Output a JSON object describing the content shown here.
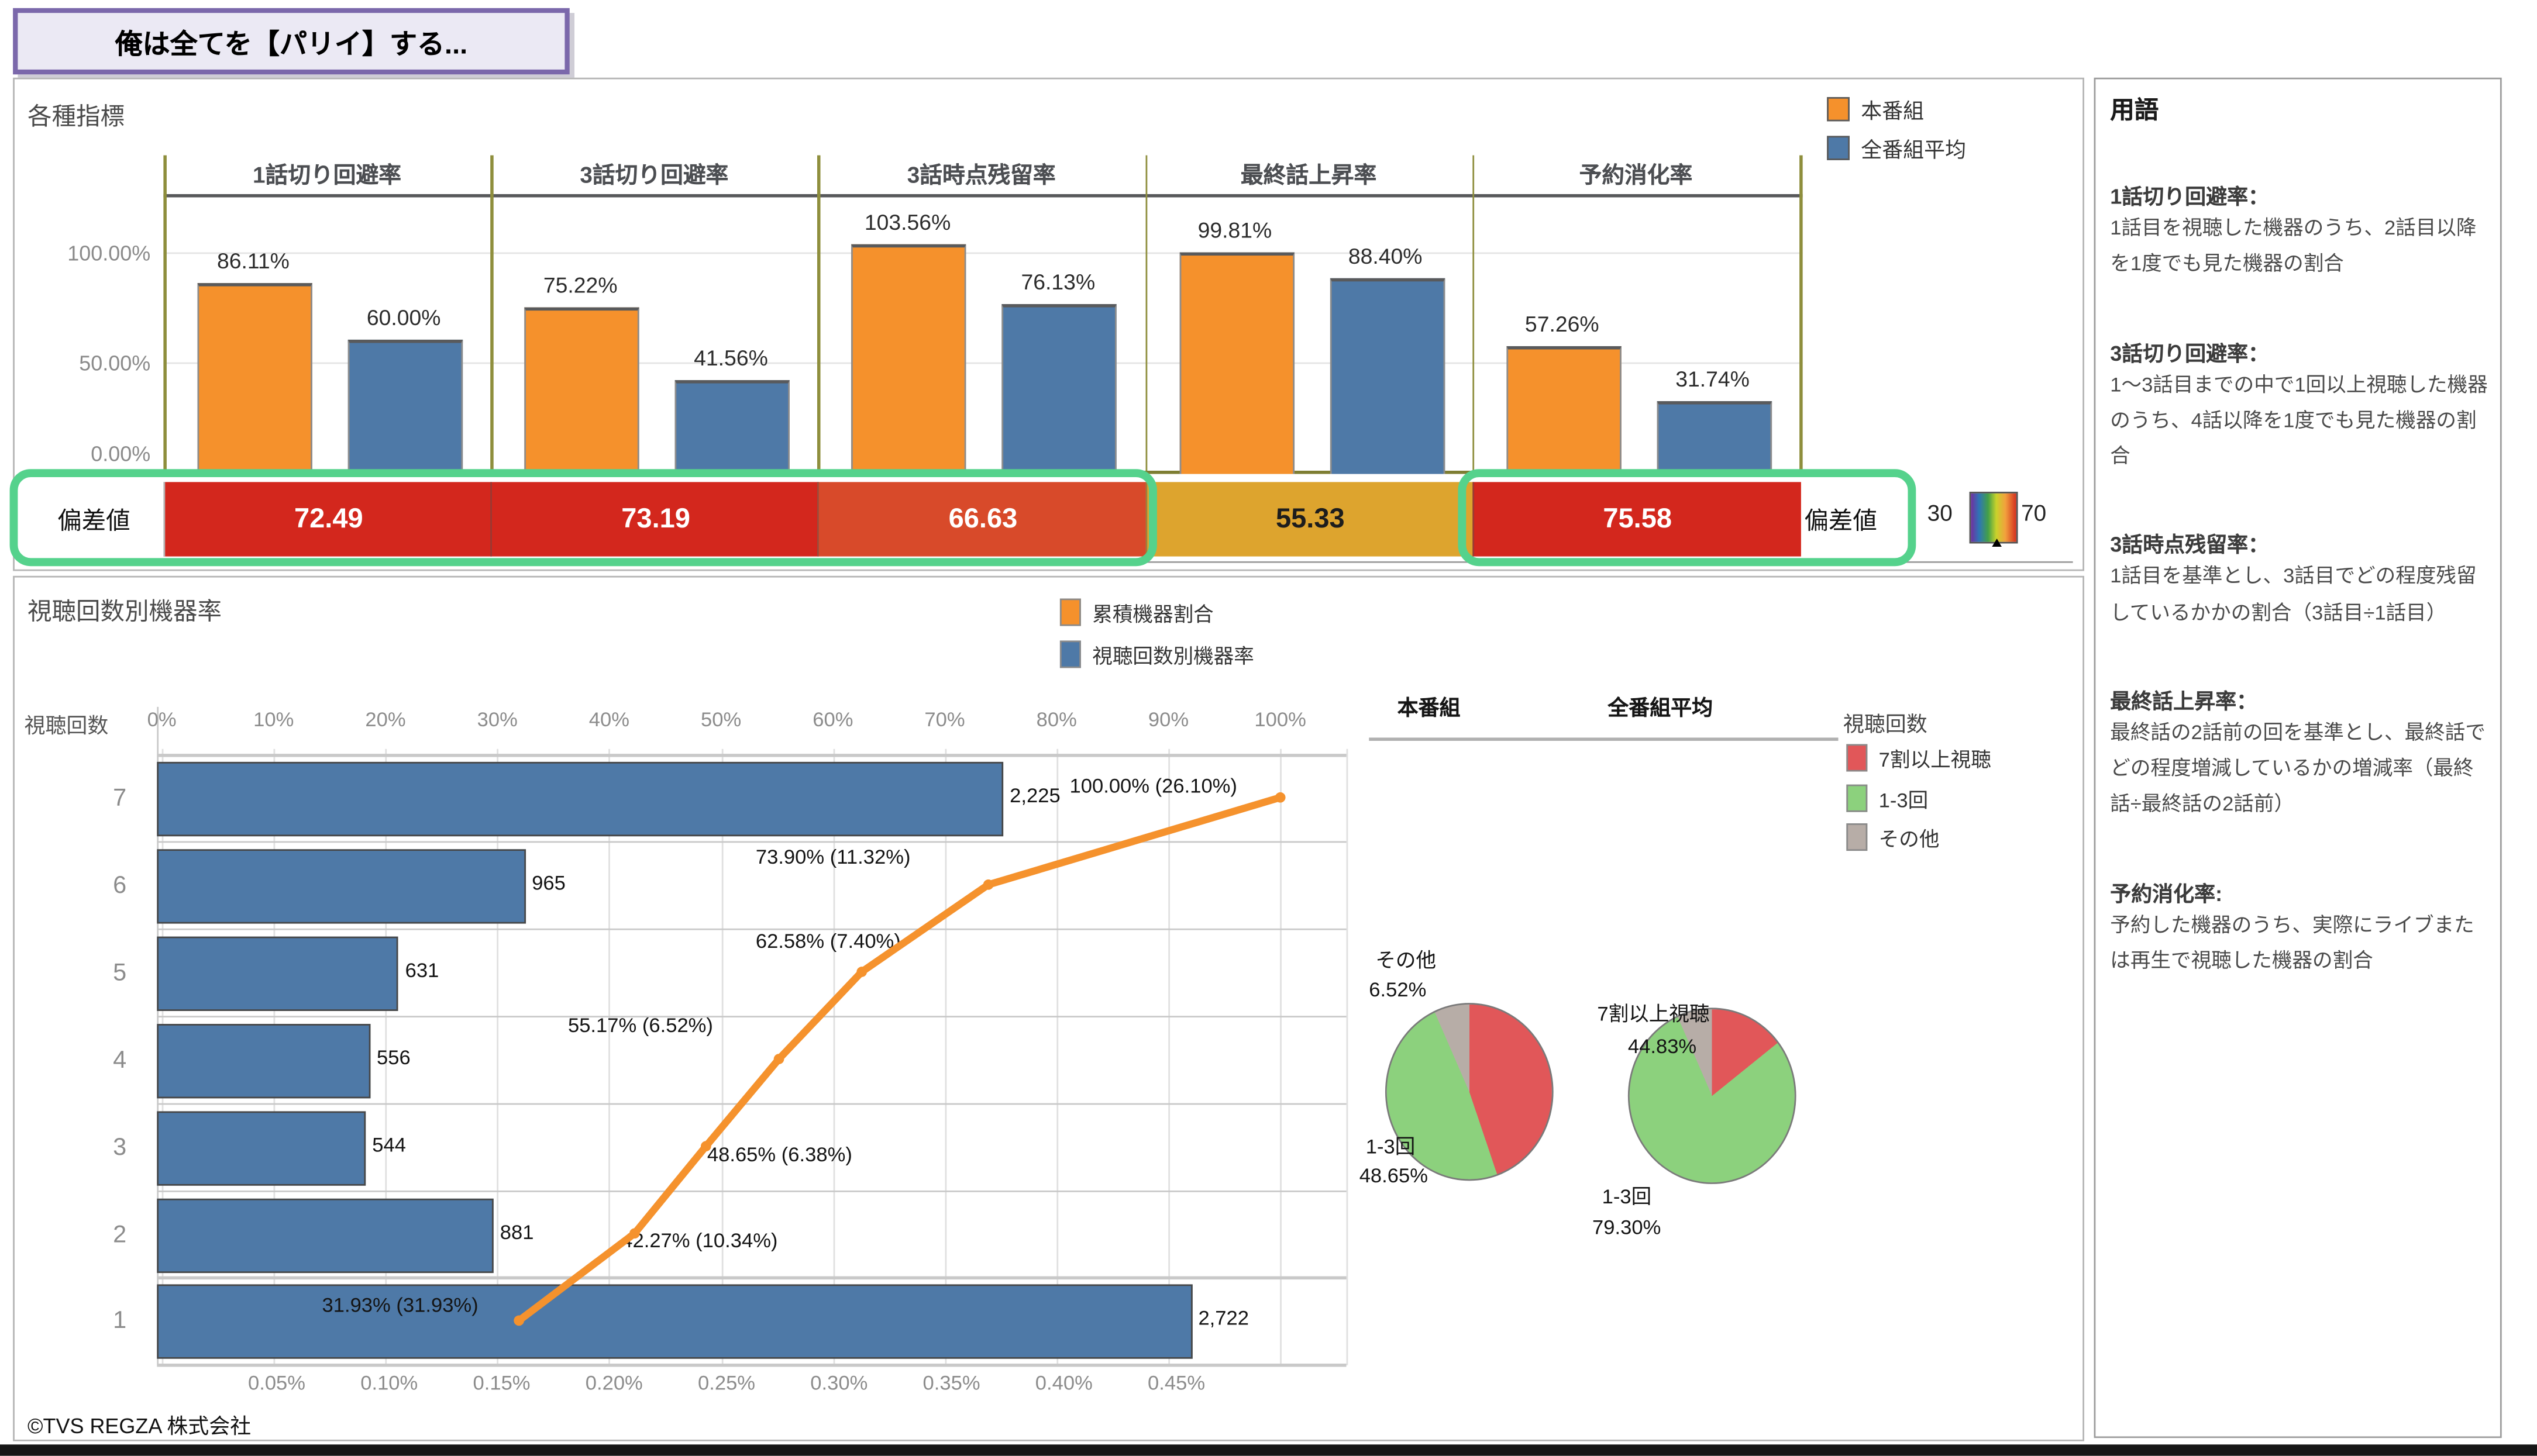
{
  "banner": {
    "title": "俺は全てを【パリイ】する..."
  },
  "metrics_panel": {
    "title": "各種指標",
    "legend": [
      {
        "label": "本番組",
        "color": "#f5912c"
      },
      {
        "label": "全番組平均",
        "color": "#4e79a7"
      }
    ],
    "y_ticks": [
      "100.00%",
      "50.00%",
      "0.00%"
    ],
    "deviation_label": "偏差値",
    "deviation_scale": {
      "min": "30",
      "max": "70"
    },
    "highlight_color": "#55d28c",
    "columns": [
      {
        "header": "1話切り回避率",
        "main": "86.11%",
        "main_value": 86.11,
        "avg": "60.00%",
        "avg_value": 60.0,
        "deviation": "72.49",
        "deviation_color": "#d3271d",
        "deviation_text_dark": false
      },
      {
        "header": "3話切り回避率",
        "main": "75.22%",
        "main_value": 75.22,
        "avg": "41.56%",
        "avg_value": 41.56,
        "deviation": "73.19",
        "deviation_color": "#d3271d",
        "deviation_text_dark": false
      },
      {
        "header": "3話時点残留率",
        "main": "103.56%",
        "main_value": 103.56,
        "avg": "76.13%",
        "avg_value": 76.13,
        "deviation": "66.63",
        "deviation_color": "#d84a2a",
        "deviation_text_dark": false
      },
      {
        "header": "最終話上昇率",
        "main": "99.81%",
        "main_value": 99.81,
        "avg": "88.40%",
        "avg_value": 88.4,
        "deviation": "55.33",
        "deviation_color": "#dda42e",
        "deviation_text_dark": true
      },
      {
        "header": "予約消化率",
        "main": "57.26%",
        "main_value": 57.26,
        "avg": "31.74%",
        "avg_value": 31.74,
        "deviation": "75.58",
        "deviation_color": "#d3271d",
        "deviation_text_dark": false
      }
    ]
  },
  "viewing_panel": {
    "title": "視聴回数別機器率",
    "legend": [
      {
        "label": "累積機器割合",
        "color": "#f5912c"
      },
      {
        "label": "視聴回数別機器率",
        "color": "#4e79a7"
      }
    ],
    "y_axis_title": "視聴回数",
    "top_axis_ticks": [
      "0%",
      "10%",
      "20%",
      "30%",
      "40%",
      "50%",
      "60%",
      "70%",
      "80%",
      "90%",
      "100%"
    ],
    "bottom_axis_ticks": [
      "0.05%",
      "0.10%",
      "0.15%",
      "0.20%",
      "0.25%",
      "0.30%",
      "0.35%",
      "0.40%",
      "0.45%"
    ],
    "rows": [
      {
        "label": "7",
        "count": 2225,
        "count_label": "2,225",
        "cum": 100.0,
        "cum_label": "100.00% (26.10%)"
      },
      {
        "label": "6",
        "count": 965,
        "count_label": "965",
        "cum": 73.9,
        "cum_label": "73.90% (11.32%)"
      },
      {
        "label": "5",
        "count": 631,
        "count_label": "631",
        "cum": 62.58,
        "cum_label": "62.58% (7.40%)"
      },
      {
        "label": "4",
        "count": 556,
        "count_label": "556",
        "cum": 55.17,
        "cum_label": "55.17% (6.52%)"
      },
      {
        "label": "3",
        "count": 544,
        "count_label": "544",
        "cum": 48.65,
        "cum_label": "48.65% (6.38%)"
      },
      {
        "label": "2",
        "count": 881,
        "count_label": "881",
        "cum": 42.27,
        "cum_label": "42.27% (10.34%)"
      },
      {
        "label": "1",
        "count": 2722,
        "count_label": "2,722",
        "cum": 31.93,
        "cum_label": "31.93% (31.93%)"
      }
    ]
  },
  "pie_section": {
    "headers": [
      "本番組",
      "全番組平均"
    ],
    "legend_title": "視聴回数",
    "legend": [
      {
        "label": "7割以上視聴",
        "color": "#e15759"
      },
      {
        "label": "1-3回",
        "color": "#8cd17d"
      },
      {
        "label": "その他",
        "color": "#b7ada7"
      }
    ],
    "main_pie": {
      "slices": [
        {
          "name": "7割以上視聴",
          "value": 44.83
        },
        {
          "name": "1-3回",
          "value": 48.65
        },
        {
          "name": "その他",
          "value": 6.52
        }
      ],
      "labels": {
        "other": "その他",
        "other_pct": "6.52%",
        "red": "7割以上視聴",
        "red_pct": "44.83%",
        "green": "1-3回",
        "green_pct": "48.65%"
      }
    },
    "avg_pie": {
      "slices": [
        {
          "name": "7割以上視聴",
          "value": 14.18
        },
        {
          "name": "1-3回",
          "value": 79.3
        },
        {
          "name": "その他",
          "value": 6.52
        }
      ],
      "labels": {
        "green": "1-3回",
        "green_pct": "79.30%"
      }
    }
  },
  "glossary": {
    "title": "用語",
    "terms": [
      {
        "term": "1話切り回避率：",
        "definition": "1話目を視聴した機器のうち、2話目以降を1度でも見た機器の割合"
      },
      {
        "term": "3話切り回避率：",
        "definition": "1～3話目までの中で1回以上視聴した機器のうち、4話以降を1度でも見た機器の割合"
      },
      {
        "term": "3話時点残留率：",
        "definition": "1話目を基準とし、3話目でどの程度残留しているかかの割合（3話目÷1話目）"
      },
      {
        "term": "最終話上昇率：",
        "definition": "最終話の2話前の回を基準とし、最終話でどの程度増減しているかの増減率（最終話÷最終話の2話前）"
      },
      {
        "term": "予約消化率:",
        "definition": "予約した機器のうち、実際にライブまたは再生で視聴した機器の割合"
      }
    ]
  },
  "footer": {
    "copyright": "©TVS REGZA 株式会社"
  },
  "chart_data": [
    {
      "type": "bar",
      "title": "各種指標",
      "categories": [
        "1話切り回避率",
        "3話切り回避率",
        "3話時点残留率",
        "最終話上昇率",
        "予約消化率"
      ],
      "series": [
        {
          "name": "本番組",
          "values": [
            86.11,
            75.22,
            103.56,
            99.81,
            57.26
          ]
        },
        {
          "name": "全番組平均",
          "values": [
            60.0,
            41.56,
            76.13,
            88.4,
            31.74
          ]
        }
      ],
      "deviation_scores": [
        72.49,
        73.19,
        66.63,
        55.33,
        75.58
      ],
      "deviation_scale": [
        30,
        70
      ],
      "xlabel": "",
      "ylabel": "",
      "ylim": [
        0,
        120
      ],
      "y_ticks_pct": [
        0,
        50,
        100
      ],
      "legend_position": "top-right",
      "grid": true
    },
    {
      "type": "bar",
      "title": "視聴回数別機器率",
      "orientation": "horizontal",
      "categories": [
        "7",
        "6",
        "5",
        "4",
        "3",
        "2",
        "1"
      ],
      "series": [
        {
          "name": "視聴回数別機器率",
          "values": [
            2225,
            965,
            631,
            556,
            544,
            881,
            2722
          ]
        },
        {
          "name": "累積機器割合",
          "values": [
            100.0,
            73.9,
            62.58,
            55.17,
            48.65,
            42.27,
            31.93
          ]
        }
      ],
      "share_pct": [
        26.1,
        11.32,
        7.4,
        6.52,
        6.38,
        10.34,
        31.93
      ],
      "top_axis_range_pct": [
        0,
        100
      ],
      "bottom_axis_ticks_pct": [
        0.05,
        0.1,
        0.15,
        0.2,
        0.25,
        0.3,
        0.35,
        0.4,
        0.45
      ],
      "xlabel": "視聴回数",
      "grid": true,
      "legend_position": "top"
    },
    {
      "type": "pie",
      "title": "本番組",
      "categories": [
        "7割以上視聴",
        "1-3回",
        "その他"
      ],
      "values": [
        44.83,
        48.65,
        6.52
      ]
    },
    {
      "type": "pie",
      "title": "全番組平均",
      "categories": [
        "7割以上視聴",
        "1-3回",
        "その他"
      ],
      "values": [
        14.18,
        79.3,
        6.52
      ]
    }
  ]
}
